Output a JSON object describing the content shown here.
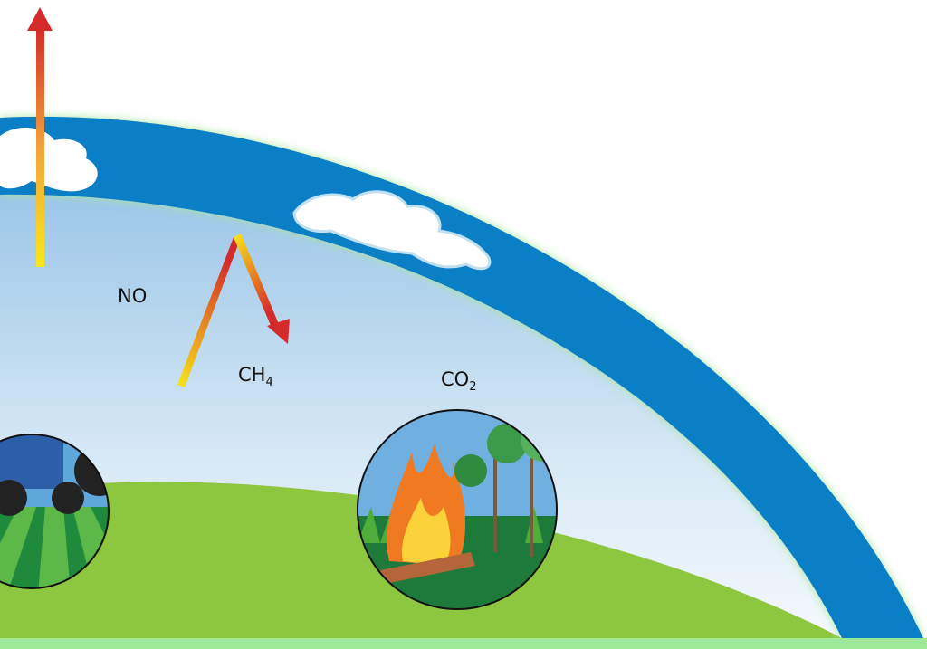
{
  "labels": [
    {
      "text": "NO"
    },
    {
      "text": "CH",
      "subscript": "4"
    },
    {
      "text": "CO",
      "subscript": "2"
    }
  ]
}
